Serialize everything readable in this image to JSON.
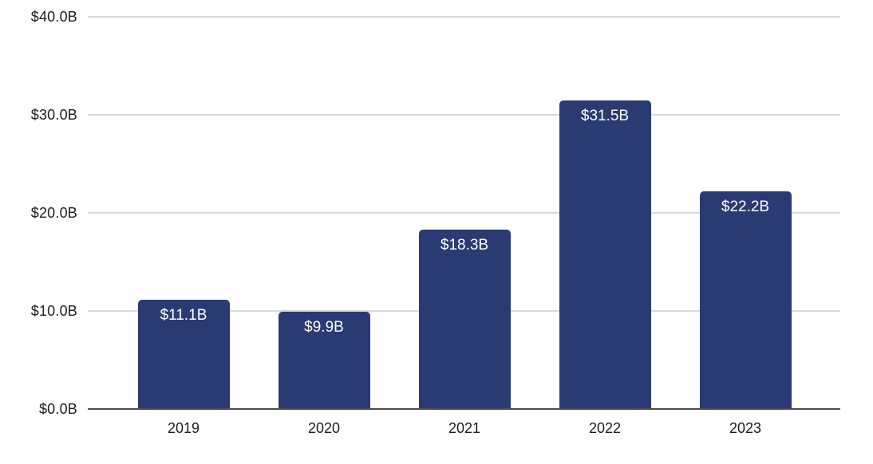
{
  "chart_data": {
    "type": "bar",
    "title": "",
    "xlabel": "",
    "ylabel": "",
    "categories": [
      "2019",
      "2020",
      "2021",
      "2022",
      "2023"
    ],
    "values": [
      11.1,
      9.9,
      18.3,
      31.5,
      22.2
    ],
    "bar_labels": [
      "$11.1B",
      "$9.9B",
      "$18.3B",
      "$31.5B",
      "$22.2B"
    ],
    "ylim": [
      0,
      40
    ],
    "yticks": [
      0,
      10,
      20,
      30,
      40
    ],
    "ytick_labels": [
      "$0.0B",
      "$10.0B",
      "$20.0B",
      "$30.0B",
      "$40.0B"
    ],
    "grid": true,
    "legend": false,
    "colors": {
      "bar": "#2a3a72",
      "bar_label_text": "#ffffff",
      "gridline": "#d8d8d8",
      "axis_line": "#4c4c4c",
      "axis_text": "#1d1d1d"
    }
  }
}
